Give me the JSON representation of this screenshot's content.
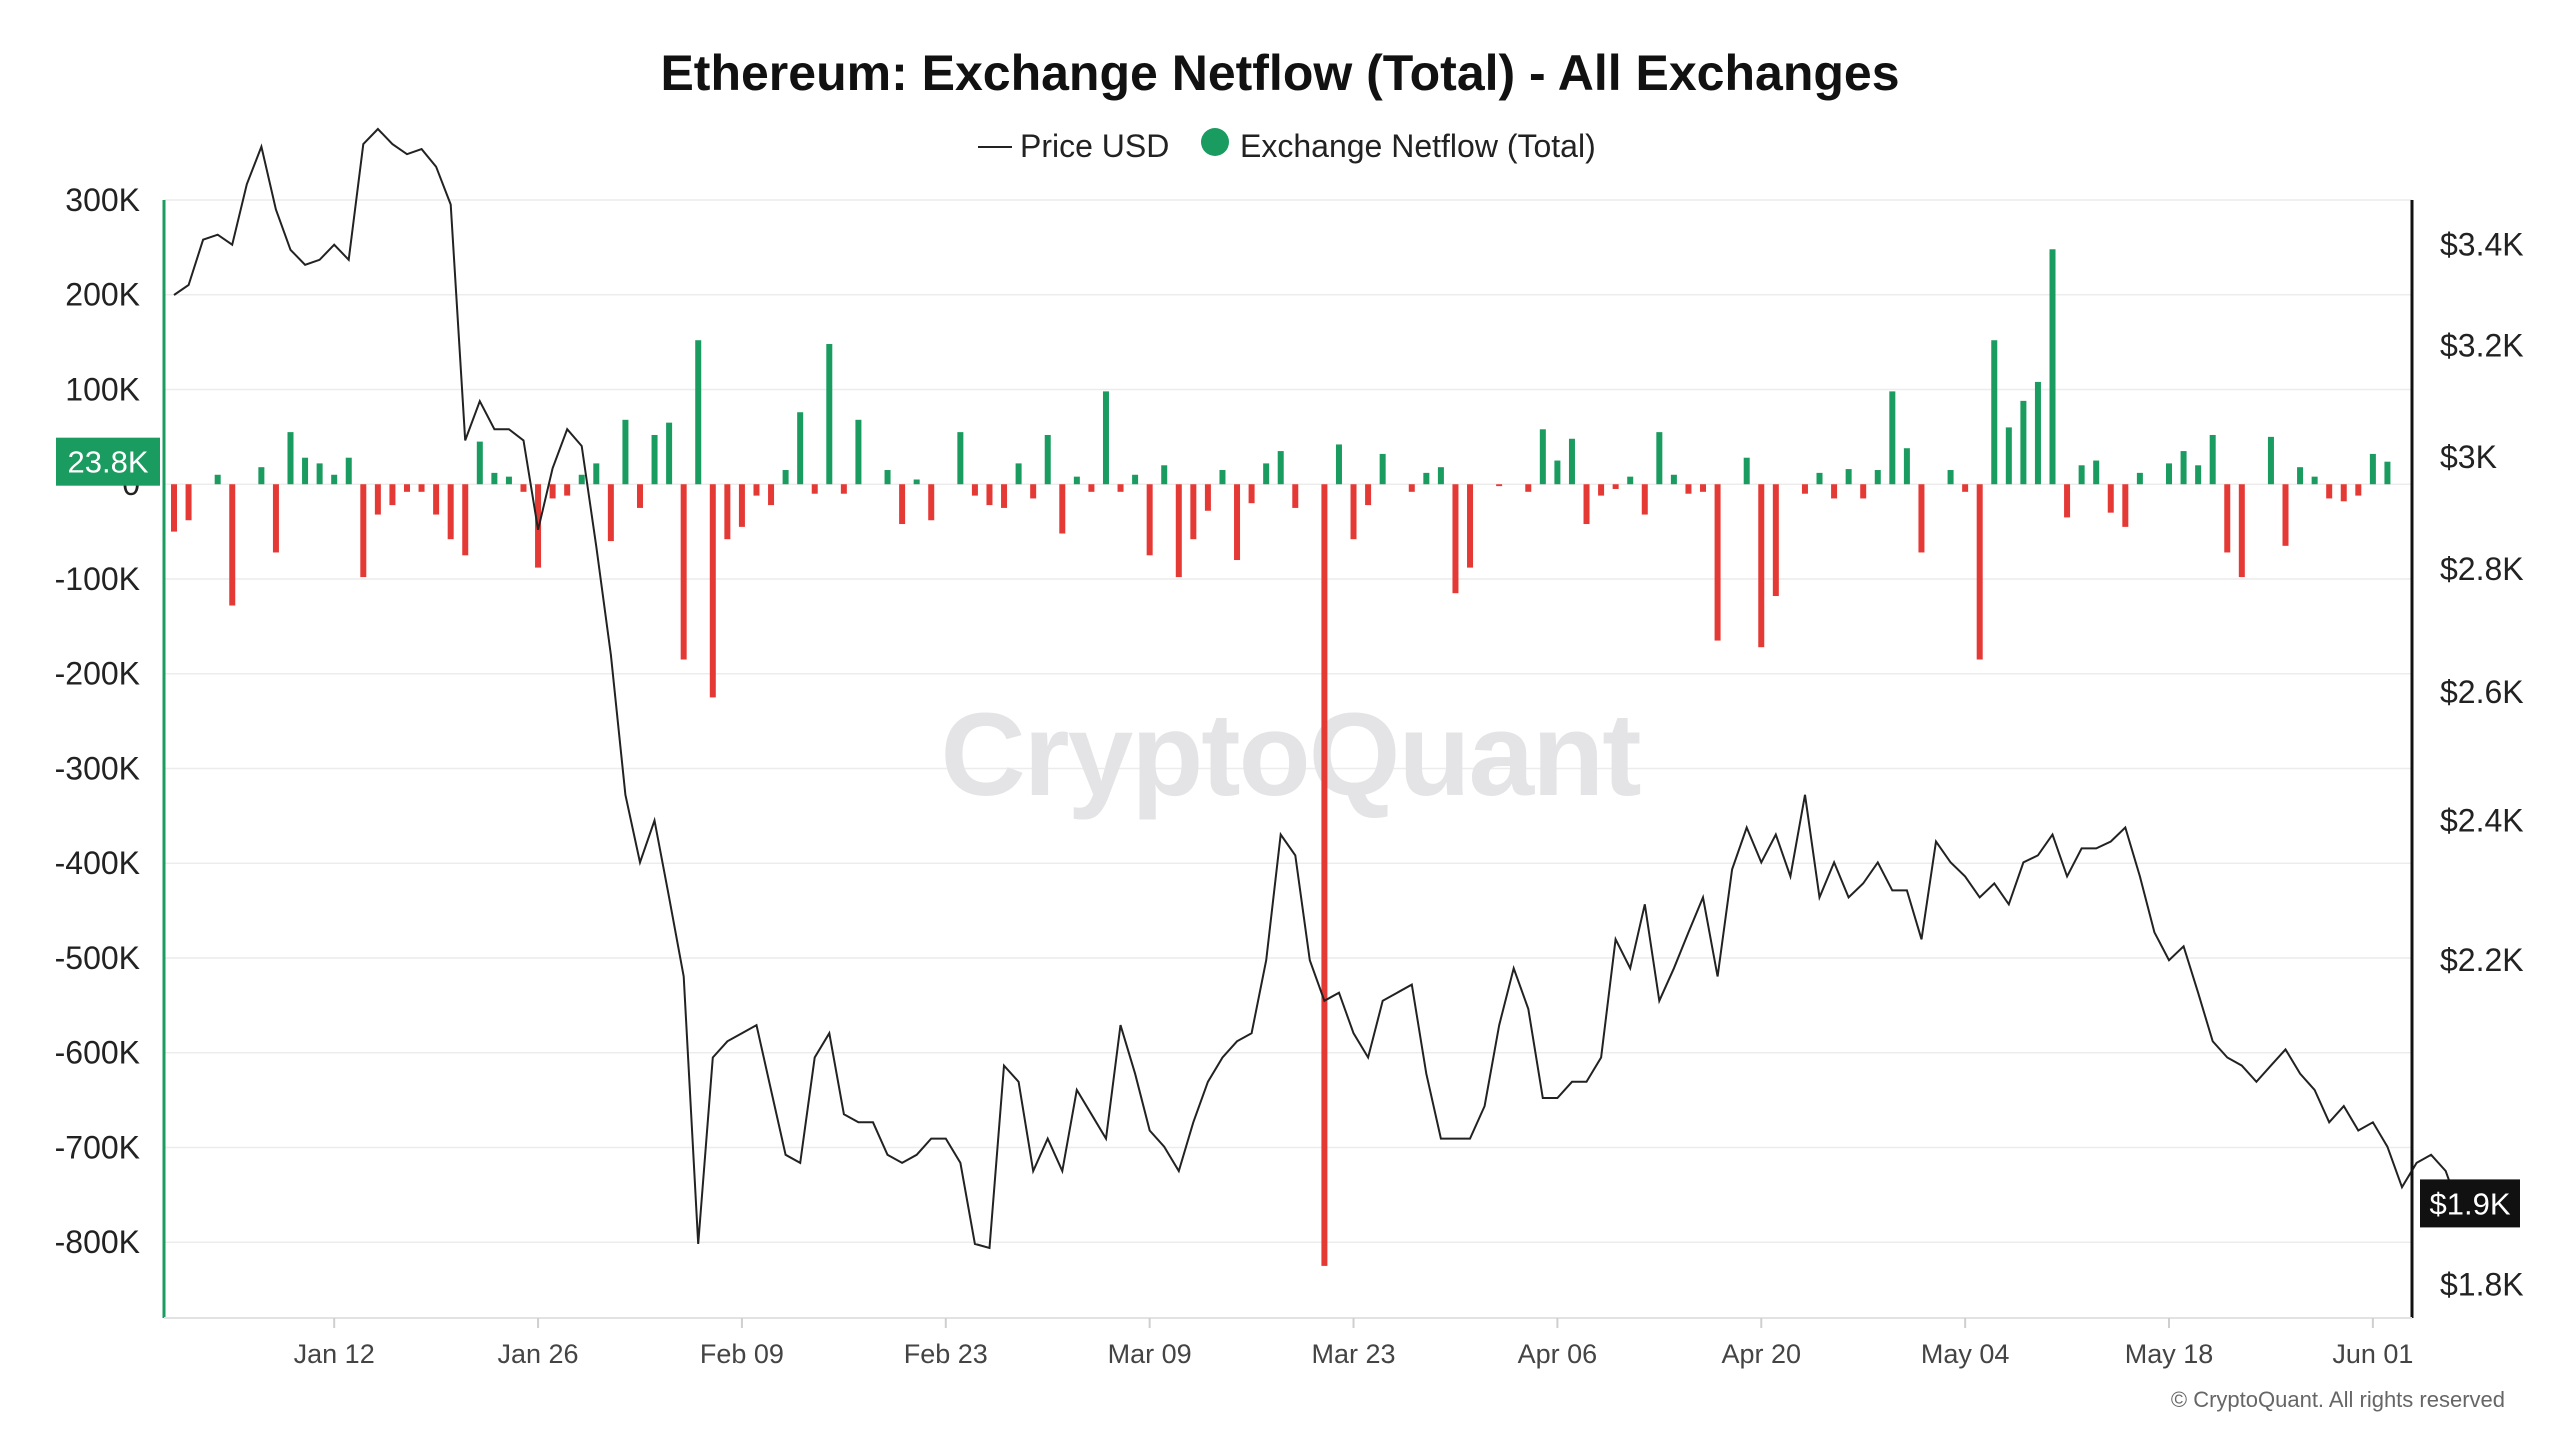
{
  "chart_data": {
    "type": "bar+line",
    "title": "Ethereum: Exchange Netflow (Total) - All Exchanges",
    "watermark": "CryptoQuant",
    "copyright": "© CryptoQuant. All rights reserved",
    "legend": [
      {
        "name": "Price USD",
        "marker": "line",
        "color": "#222222"
      },
      {
        "name": "Exchange Netflow (Total)",
        "marker": "dot",
        "color": "#1a9b5f"
      }
    ],
    "colors": {
      "positive": "#1a9b5f",
      "negative": "#e53935",
      "price": "#222222",
      "left_axis": "#1a9b5f",
      "right_axis": "#111111",
      "grid": "#ececec"
    },
    "x_ticks": [
      {
        "label": "Jan 12",
        "day": 11
      },
      {
        "label": "Jan 26",
        "day": 25
      },
      {
        "label": "Feb 09",
        "day": 39
      },
      {
        "label": "Feb 23",
        "day": 53
      },
      {
        "label": "Mar 09",
        "day": 67
      },
      {
        "label": "Mar 23",
        "day": 81
      },
      {
        "label": "Apr 06",
        "day": 95
      },
      {
        "label": "Apr 20",
        "day": 109
      },
      {
        "label": "May 04",
        "day": 123
      },
      {
        "label": "May 18",
        "day": 137
      },
      {
        "label": "Jun 01",
        "day": 151
      }
    ],
    "x_range_days": [
      0,
      153
    ],
    "left_axis": {
      "ylim": [
        -880000,
        300000
      ],
      "ticks": [
        {
          "value": 300000,
          "label": "300K"
        },
        {
          "value": 200000,
          "label": "200K"
        },
        {
          "value": 100000,
          "label": "100K"
        },
        {
          "value": 0,
          "label": "0"
        },
        {
          "value": -100000,
          "label": "-100K"
        },
        {
          "value": -200000,
          "label": "-200K"
        },
        {
          "value": -300000,
          "label": "-300K"
        },
        {
          "value": -400000,
          "label": "-400K"
        },
        {
          "value": -500000,
          "label": "-500K"
        },
        {
          "value": -600000,
          "label": "-600K"
        },
        {
          "value": -700000,
          "label": "-700K"
        },
        {
          "value": -800000,
          "label": "-800K"
        }
      ],
      "current_badge": {
        "label": "23.8K",
        "value": 23800
      }
    },
    "right_axis": {
      "ticks": [
        {
          "value": 3400,
          "label": "$3.4K",
          "frac": 0.04
        },
        {
          "value": 3200,
          "label": "$3.2K",
          "frac": 0.13
        },
        {
          "value": 3000,
          "label": "$3K",
          "frac": 0.23
        },
        {
          "value": 2800,
          "label": "$2.8K",
          "frac": 0.33
        },
        {
          "value": 2600,
          "label": "$2.6K",
          "frac": 0.44
        },
        {
          "value": 2400,
          "label": "$2.4K",
          "frac": 0.555
        },
        {
          "value": 2200,
          "label": "$2.2K",
          "frac": 0.68
        },
        {
          "value": 1800,
          "label": "$1.8K",
          "frac": 0.97
        }
      ],
      "current_badge": {
        "label": "$1.9K",
        "value": 1900
      }
    },
    "netflow_series": {
      "name": "Exchange Netflow (Total)",
      "values": [
        -50000,
        -38000,
        0,
        10000,
        -128000,
        0,
        18000,
        -72000,
        55000,
        28000,
        22000,
        10000,
        28000,
        -98000,
        -32000,
        -22000,
        -8000,
        -8000,
        -32000,
        -58000,
        -75000,
        45000,
        12000,
        8000,
        -8000,
        -88000,
        -15000,
        -12000,
        10000,
        22000,
        -60000,
        68000,
        -25000,
        52000,
        65000,
        -185000,
        152000,
        -225000,
        -58000,
        -45000,
        -12000,
        -22000,
        15000,
        76000,
        -10000,
        148000,
        -10000,
        68000,
        0,
        15000,
        -42000,
        5000,
        -38000,
        0,
        55000,
        -12000,
        -22000,
        -25000,
        22000,
        -15000,
        52000,
        -52000,
        8000,
        -8000,
        98000,
        -8000,
        10000,
        -75000,
        20000,
        -98000,
        -58000,
        -28000,
        15000,
        -80000,
        -20000,
        22000,
        35000,
        -25000,
        0,
        -825000,
        42000,
        -58000,
        -22000,
        32000,
        0,
        -8000,
        12000,
        18000,
        -115000,
        -88000,
        0,
        -2000,
        0,
        -8000,
        58000,
        25000,
        48000,
        -42000,
        -12000,
        -5000,
        8000,
        -32000,
        55000,
        10000,
        -10000,
        -8000,
        -165000,
        0,
        28000,
        -172000,
        -118000,
        0,
        -10000,
        12000,
        -15000,
        16000,
        -15000,
        15000,
        98000,
        38000,
        -72000,
        0,
        15000,
        -8000,
        -185000,
        152000,
        60000,
        88000,
        108000,
        248000,
        -35000,
        20000,
        25000,
        -30000,
        -45000,
        12000,
        0,
        22000,
        35000,
        20000,
        52000,
        -72000,
        -98000,
        0,
        50000,
        -65000,
        18000,
        8000,
        -15000,
        -18000,
        -12000,
        32000,
        23800
      ]
    },
    "price_series": {
      "name": "Price USD",
      "values": [
        3300,
        3320,
        3410,
        3420,
        3400,
        3520,
        3595,
        3470,
        3390,
        3360,
        3370,
        3400,
        3370,
        3600,
        3630,
        3600,
        3580,
        3590,
        3555,
        3480,
        3030,
        3100,
        3050,
        3050,
        3030,
        2870,
        2980,
        3050,
        3020,
        2840,
        2660,
        2440,
        2340,
        2400,
        2290,
        2180,
        1850,
        2080,
        2100,
        2110,
        2120,
        2040,
        1960,
        1950,
        2080,
        2110,
        2010,
        2000,
        2000,
        1960,
        1950,
        1960,
        1980,
        1980,
        1950,
        1850,
        1845,
        2070,
        2050,
        1940,
        1980,
        1940,
        2040,
        2010,
        1980,
        2120,
        2060,
        1990,
        1970,
        1940,
        2000,
        2050,
        2080,
        2100,
        2110,
        2200,
        2380,
        2350,
        2200,
        2150,
        2160,
        2110,
        2080,
        2150,
        2160,
        2170,
        2060,
        1980,
        1980,
        1980,
        2020,
        2120,
        2190,
        2140,
        2030,
        2030,
        2050,
        2050,
        2080,
        2230,
        2190,
        2280,
        2150,
        2190,
        2240,
        2290,
        2180,
        2330,
        2390,
        2340,
        2380,
        2320,
        2440,
        2290,
        2340,
        2290,
        2310,
        2340,
        2300,
        2300,
        2230,
        2370,
        2340,
        2320,
        2290,
        2310,
        2280,
        2340,
        2350,
        2380,
        2320,
        2360,
        2360,
        2370,
        2390,
        2320,
        2240,
        2200,
        2220,
        2160,
        2100,
        2080,
        2070,
        2050,
        2070,
        2090,
        2060,
        2040,
        2000,
        2020,
        1990,
        2000,
        1970,
        1920,
        1950,
        1960,
        1940,
        1890,
        1920
      ]
    }
  }
}
